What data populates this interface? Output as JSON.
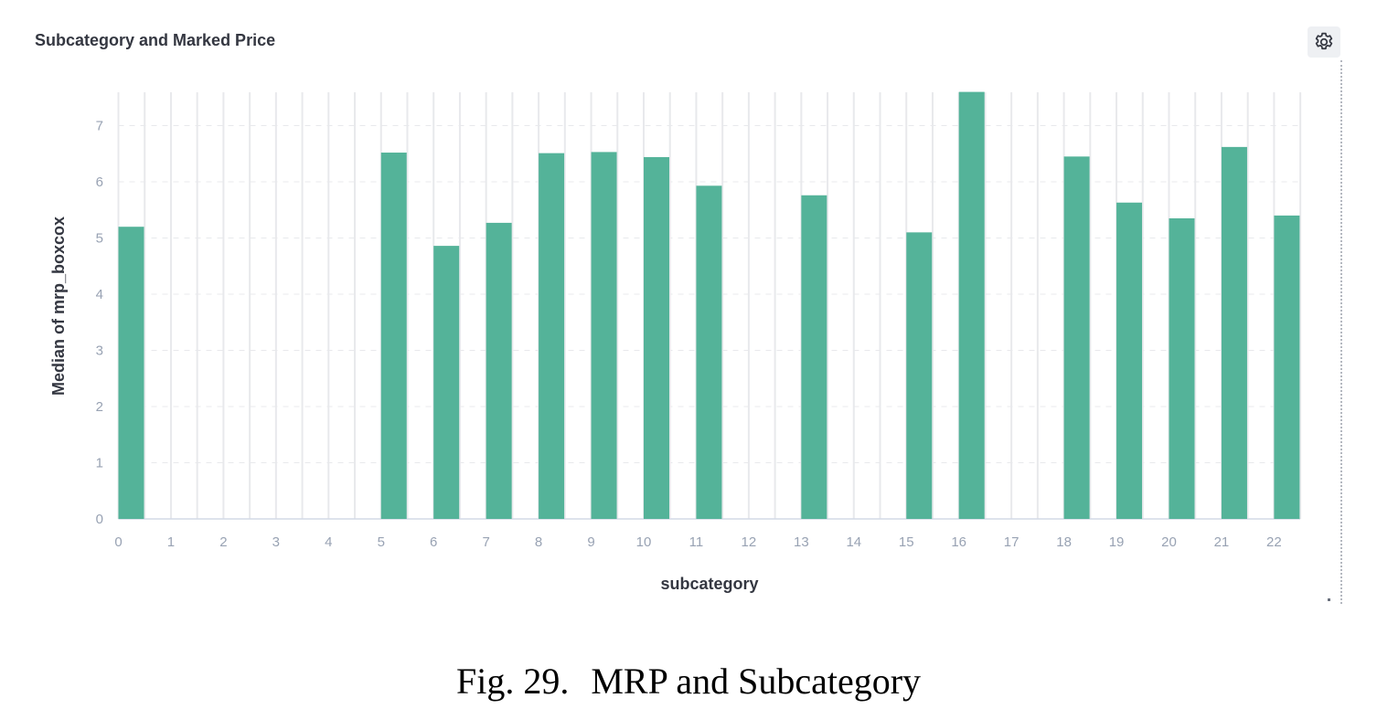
{
  "panel": {
    "title": "Subcategory and Marked Price",
    "settings_icon": "gear-icon"
  },
  "caption": {
    "label": "Fig. 29.",
    "text": "MRP and Subcategory"
  },
  "colors": {
    "bar": "#54b399",
    "grid": "#e8e9ec",
    "tick_text": "#98a2b3",
    "axis_title": "#343741"
  },
  "chart_data": {
    "type": "bar",
    "title": "Subcategory and Marked Price",
    "xlabel": "subcategory",
    "ylabel": "Median of mrp_boxcox",
    "categories": [
      "0",
      "1",
      "2",
      "3",
      "4",
      "5",
      "6",
      "7",
      "8",
      "9",
      "10",
      "11",
      "12",
      "13",
      "14",
      "15",
      "16",
      "17",
      "18",
      "19",
      "20",
      "21",
      "22"
    ],
    "values": [
      5.2,
      null,
      null,
      null,
      null,
      6.52,
      4.86,
      5.27,
      6.51,
      6.53,
      6.44,
      5.93,
      null,
      5.76,
      null,
      5.1,
      7.6,
      null,
      6.45,
      5.63,
      5.35,
      6.62,
      5.4
    ],
    "ylim": [
      0,
      7.6
    ],
    "yticks": [
      0,
      1,
      2,
      3,
      4,
      5,
      6,
      7
    ],
    "grid": true,
    "legend": "none"
  }
}
